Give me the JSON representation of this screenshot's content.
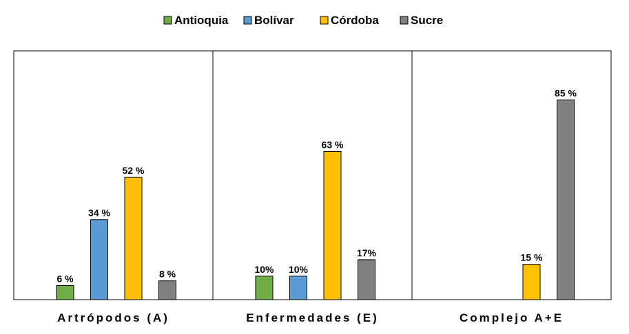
{
  "chart_data": {
    "type": "bar",
    "categories": [
      "Artrópodos (A)",
      "Enfermedades (E)",
      "Complejo A+E"
    ],
    "series": [
      {
        "name": "Antioquia",
        "color": "#70ad47",
        "values": [
          6,
          10,
          null
        ],
        "labels": [
          "6 %",
          "10%",
          ""
        ]
      },
      {
        "name": "Bolívar",
        "color": "#5b9bd5",
        "values": [
          34,
          10,
          null
        ],
        "labels": [
          "34 %",
          "10%",
          ""
        ]
      },
      {
        "name": "Córdoba",
        "color": "#ffc000",
        "values": [
          52,
          63,
          15
        ],
        "labels": [
          "52 %",
          "63 %",
          "15 %"
        ]
      },
      {
        "name": "Sucre",
        "color": "#808080",
        "values": [
          8,
          17,
          85
        ],
        "labels": [
          "8 %",
          "17%",
          "85 %"
        ]
      }
    ],
    "title": "",
    "xlabel": "",
    "ylabel": "",
    "legend": "top-center",
    "grid": false,
    "axis_color": "#000000"
  }
}
